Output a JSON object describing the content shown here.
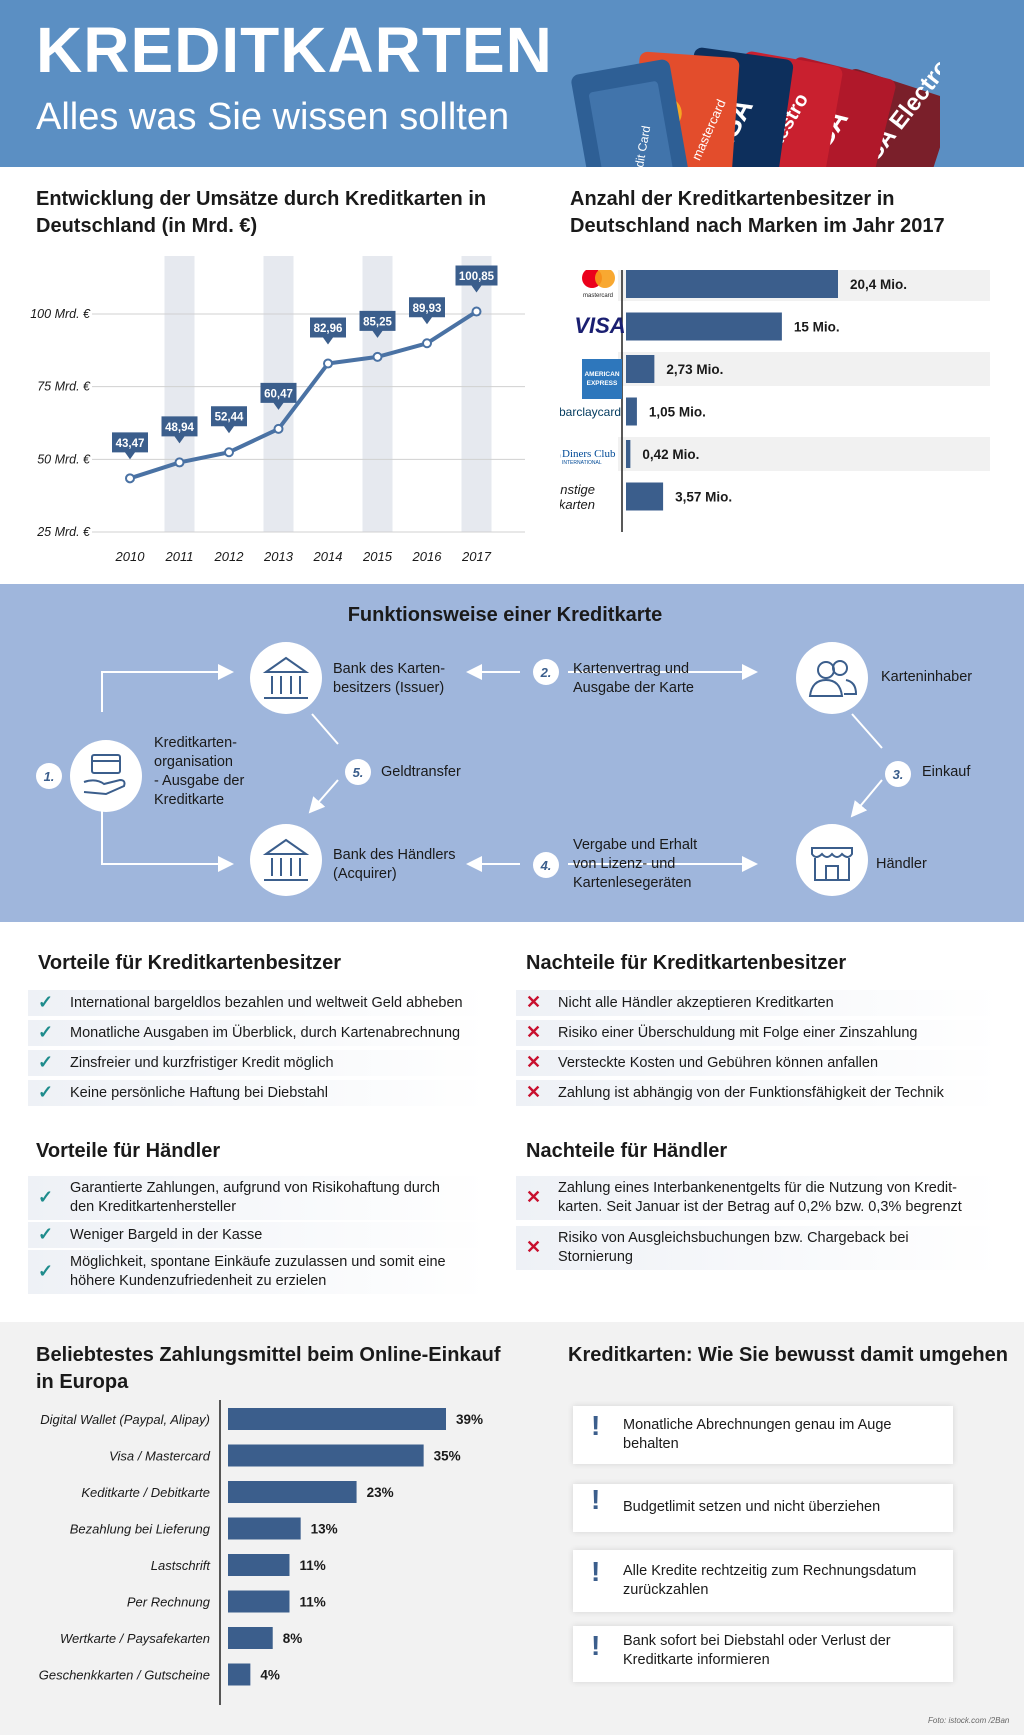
{
  "header": {
    "title": "KREDITKARTEN",
    "subtitle": "Alles was Sie wissen sollten"
  },
  "colors": {
    "header_bg": "#5b8fc3",
    "bar": "#3b5e8c",
    "flow_bg": "#9fb6dc",
    "check": "#1e8c8c",
    "cross": "#c8102e"
  },
  "umsatz": {
    "title": "Entwicklung der Umsätze durch Kreditkarten in Deutschland (in Mrd. €)"
  },
  "marken": {
    "title": "Anzahl der Kreditkartenbesitzer in Deutschland nach Marken im Jahr 2017"
  },
  "online": {
    "title": "Beliebtestes Zahlungsmittel beim Online-Einkauf in Europa"
  },
  "chart_data": [
    {
      "type": "line",
      "title": "Entwicklung der Umsätze durch Kreditkarten in Deutschland (in Mrd. €)",
      "categories": [
        "2010",
        "2011",
        "2012",
        "2013",
        "2014",
        "2015",
        "2016",
        "2017"
      ],
      "values": [
        43.47,
        48.94,
        52.44,
        60.47,
        82.96,
        85.25,
        89.93,
        100.85
      ],
      "data_labels": [
        "43,47",
        "48,94",
        "52,44",
        "60,47",
        "82,96",
        "85,25",
        "89,93",
        "100,85"
      ],
      "ytick_labels": [
        "100 Mrd. €",
        "75 Mrd. €",
        "50 Mrd. €",
        "25 Mrd. €"
      ],
      "yticks": [
        100,
        75,
        50,
        25
      ],
      "ylim": [
        25,
        100
      ]
    },
    {
      "type": "bar",
      "title": "Anzahl der Kreditkartenbesitzer in Deutschland nach Marken im Jahr 2017",
      "categories": [
        "mastercard",
        "VISA",
        "AMERICAN EXPRESS",
        "barclaycard",
        "Diners Club INTERNATIONAL",
        "sonstige Kreditkarten"
      ],
      "values": [
        20.4,
        15,
        2.73,
        1.05,
        0.42,
        3.57
      ],
      "data_labels": [
        "20,4 Mio.",
        "15 Mio.",
        "2,73 Mio.",
        "1,05 Mio.",
        "0,42 Mio.",
        "3,57 Mio."
      ]
    },
    {
      "type": "bar",
      "title": "Beliebtestes Zahlungsmittel beim Online-Einkauf in Europa",
      "categories": [
        "Digital Wallet (Paypal, Alipay)",
        "Visa / Mastercard",
        "Keditkarte / Debitkarte",
        "Bezahlung bei Lieferung",
        "Lastschrift",
        "Per Rechnung",
        "Wertkarte / Paysafekarten",
        "Geschenkkarten / Gutscheine"
      ],
      "values": [
        39,
        35,
        23,
        13,
        11,
        11,
        8,
        4
      ],
      "data_labels": [
        "39%",
        "35%",
        "23%",
        "13%",
        "11%",
        "11%",
        "8%",
        "4%"
      ]
    }
  ],
  "funktion": {
    "title": "Funktionsweise einer Kreditkarte",
    "nodes": {
      "issuer": "Bank des Karten-\nbesitzers (Issuer)",
      "holder": "Karteninhaber",
      "org": "Kreditkarten-\norganisation\n- Ausgabe der\nKreditkarte",
      "acquirer": "Bank des Händlers\n(Acquirer)",
      "merchant": "Händler"
    },
    "steps": [
      {
        "num": "1.",
        "label": ""
      },
      {
        "num": "2.",
        "label": "Kartenvertrag und\nAusgabe der Karte"
      },
      {
        "num": "3.",
        "label": "Einkauf"
      },
      {
        "num": "4.",
        "label": "Vergabe und Erhalt\nvon Lizenz- und\nKartenlesegeräten"
      },
      {
        "num": "5.",
        "label": "Geldtransfer"
      }
    ],
    "icons": [
      "card-in-hand-icon",
      "bank-icon",
      "people-icon",
      "shop-icon"
    ]
  },
  "vorteile_besitzer": {
    "title": "Vorteile für Kreditkartenbesitzer",
    "items": [
      "International bargeldlos bezahlen und weltweit Geld abheben",
      "Monatliche Ausgaben im Überblick, durch Kartenabrechnung",
      "Zinsfreier und kurzfristiger Kredit möglich",
      "Keine persönliche Haftung bei Diebstahl"
    ]
  },
  "nachteile_besitzer": {
    "title": "Nachteile für Kreditkartenbesitzer",
    "items": [
      "Nicht alle Händler akzeptieren Kreditkarten",
      "Risiko einer Überschuldung mit Folge einer Zinszahlung",
      "Versteckte Kosten und Gebühren können anfallen",
      "Zahlung ist abhängig von der Funktionsfähigkeit der Technik"
    ]
  },
  "vorteile_haendler": {
    "title": "Vorteile für Händler",
    "items": [
      "Garantierte Zahlungen, aufgrund von Risikohaftung durch\nden Kreditkartenhersteller",
      "Weniger Bargeld in der Kasse",
      "Möglichkeit, spontane Einkäufe zuzulassen und somit eine\nhöhere Kundenzufriedenheit zu erzielen"
    ]
  },
  "nachteile_haendler": {
    "title": "Nachteile für Händler",
    "items": [
      "Zahlung eines Interbankenentgelts für die Nutzung von Kredit-\nkarten. Seit Januar ist der Betrag auf 0,2% bzw. 0,3% begrenzt",
      "Risiko von Ausgleichsbuchungen bzw. Chargeback bei\nStornierung"
    ]
  },
  "tipps": {
    "title": "Kreditkarten: Wie Sie bewusst damit umgehen",
    "items": [
      "Monatliche Abrechnungen genau im Auge\nbehalten",
      "Budgetlimit setzen und nicht überziehen",
      "Alle Kredite rechtzeitig zum Rechnungsdatum\nzurückzahlen",
      "Bank sofort bei Diebstahl oder Verlust der\nKreditkarte informieren"
    ]
  },
  "credit": "Foto: istock.com /2Ban",
  "header_cards": [
    "Credit Card",
    "mastercard",
    "VISA",
    "Maestro",
    "VISA Electron"
  ]
}
